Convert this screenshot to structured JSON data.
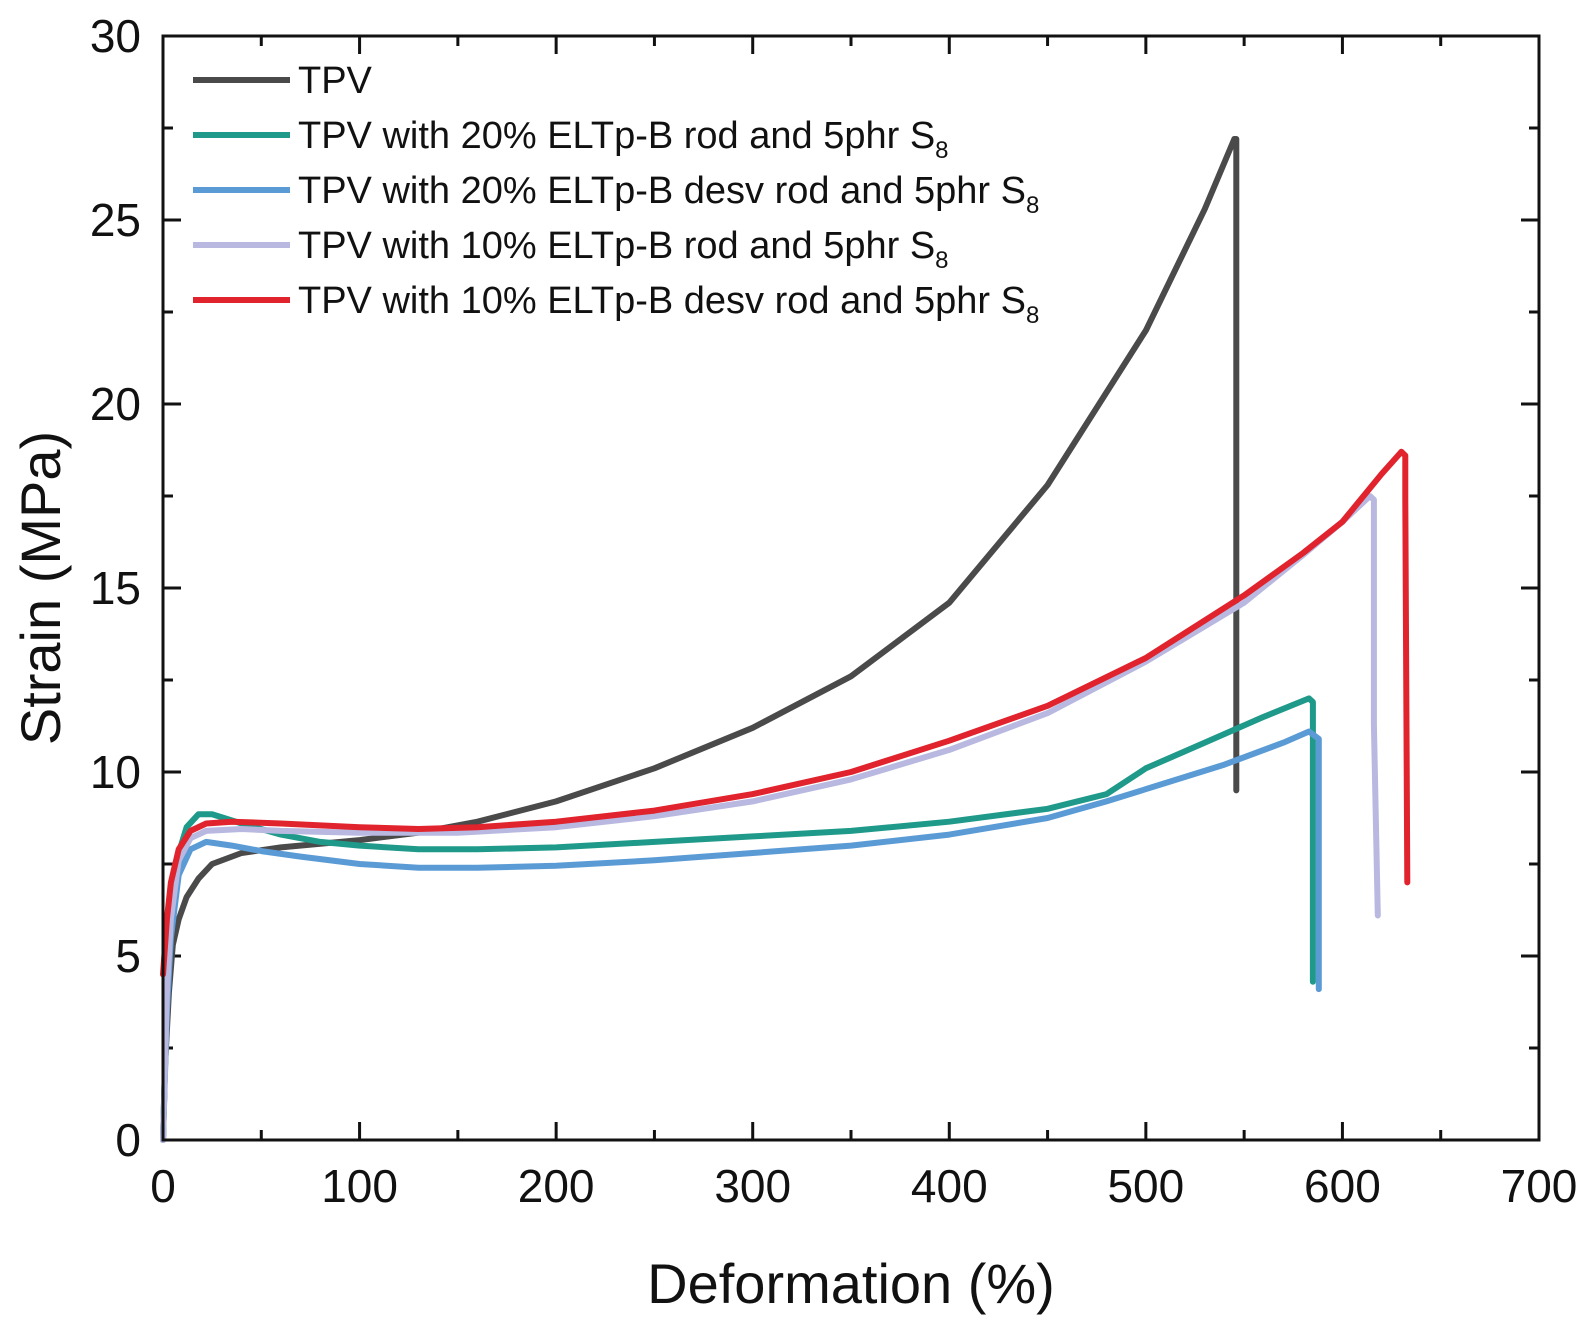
{
  "chart_data": {
    "type": "line",
    "title": "",
    "xlabel": "Deformation (%)",
    "ylabel": "Strain (MPa)",
    "xlim": [
      0,
      700
    ],
    "ylim": [
      0,
      30
    ],
    "xticks": [
      0,
      100,
      200,
      300,
      400,
      500,
      600,
      700
    ],
    "yticks": [
      0,
      5,
      10,
      15,
      20,
      25,
      30
    ],
    "xtick_labels": [
      "0",
      "100",
      "200",
      "300",
      "400",
      "500",
      "600",
      "700"
    ],
    "ytick_labels": [
      "0",
      "5",
      "10",
      "15",
      "20",
      "25",
      "30"
    ],
    "legend_position": "top-left",
    "series": [
      {
        "name": "TPV",
        "legend_label": "TPV",
        "legend_subscript": "",
        "color": "#4a4a4a",
        "points": [
          [
            0,
            0
          ],
          [
            1,
            2
          ],
          [
            3,
            4
          ],
          [
            5,
            5.3
          ],
          [
            8,
            6
          ],
          [
            12,
            6.6
          ],
          [
            18,
            7.1
          ],
          [
            25,
            7.5
          ],
          [
            40,
            7.8
          ],
          [
            60,
            7.95
          ],
          [
            80,
            8.05
          ],
          [
            100,
            8.15
          ],
          [
            130,
            8.35
          ],
          [
            160,
            8.65
          ],
          [
            200,
            9.2
          ],
          [
            250,
            10.1
          ],
          [
            300,
            11.2
          ],
          [
            350,
            12.6
          ],
          [
            400,
            14.6
          ],
          [
            450,
            17.8
          ],
          [
            500,
            22
          ],
          [
            530,
            25.3
          ],
          [
            545,
            27.2
          ],
          [
            546,
            27.2
          ],
          [
            546,
            9.5
          ]
        ]
      },
      {
        "name": "TPV with 20% ELTp-B rod and 5phr S8",
        "legend_label": "TPV with 20% ELTp-B rod and 5phr S",
        "legend_subscript": "8",
        "color": "#1f9a8a",
        "points": [
          [
            0,
            0
          ],
          [
            2,
            4
          ],
          [
            4,
            6
          ],
          [
            8,
            7.8
          ],
          [
            12,
            8.5
          ],
          [
            18,
            8.85
          ],
          [
            25,
            8.85
          ],
          [
            40,
            8.6
          ],
          [
            60,
            8.3
          ],
          [
            80,
            8.1
          ],
          [
            100,
            8
          ],
          [
            130,
            7.9
          ],
          [
            160,
            7.9
          ],
          [
            200,
            7.95
          ],
          [
            250,
            8.1
          ],
          [
            300,
            8.25
          ],
          [
            350,
            8.4
          ],
          [
            400,
            8.65
          ],
          [
            450,
            9
          ],
          [
            480,
            9.4
          ],
          [
            500,
            10.1
          ],
          [
            530,
            10.8
          ],
          [
            560,
            11.5
          ],
          [
            583,
            12
          ],
          [
            585,
            11.9
          ],
          [
            585,
            4.3
          ]
        ]
      },
      {
        "name": "TPV with 20% ELTp-B desv rod and 5phr S8",
        "legend_label": "TPV with 20% ELTp-B desv rod and 5phr S",
        "legend_subscript": "8",
        "color": "#5b9bd5",
        "points": [
          [
            0,
            0
          ],
          [
            2,
            3.5
          ],
          [
            4,
            5.5
          ],
          [
            8,
            7.2
          ],
          [
            14,
            7.9
          ],
          [
            22,
            8.1
          ],
          [
            35,
            8
          ],
          [
            50,
            7.85
          ],
          [
            70,
            7.7
          ],
          [
            100,
            7.5
          ],
          [
            130,
            7.4
          ],
          [
            160,
            7.4
          ],
          [
            200,
            7.45
          ],
          [
            250,
            7.6
          ],
          [
            300,
            7.8
          ],
          [
            350,
            8
          ],
          [
            400,
            8.3
          ],
          [
            450,
            8.75
          ],
          [
            480,
            9.2
          ],
          [
            510,
            9.7
          ],
          [
            540,
            10.2
          ],
          [
            570,
            10.8
          ],
          [
            583,
            11.1
          ],
          [
            588,
            10.9
          ],
          [
            588,
            4.1
          ]
        ]
      },
      {
        "name": "TPV with 10% ELTp-B rod and 5phr S8",
        "legend_label": "TPV with 10% ELTp-B rod and 5phr S",
        "legend_subscript": "8",
        "color": "#b8b8e0",
        "points": [
          [
            0,
            0
          ],
          [
            2,
            4
          ],
          [
            4,
            6
          ],
          [
            8,
            7.6
          ],
          [
            14,
            8.2
          ],
          [
            22,
            8.4
          ],
          [
            40,
            8.45
          ],
          [
            60,
            8.4
          ],
          [
            100,
            8.35
          ],
          [
            150,
            8.35
          ],
          [
            200,
            8.5
          ],
          [
            250,
            8.8
          ],
          [
            300,
            9.2
          ],
          [
            350,
            9.8
          ],
          [
            400,
            10.6
          ],
          [
            450,
            11.6
          ],
          [
            500,
            13
          ],
          [
            550,
            14.6
          ],
          [
            580,
            15.9
          ],
          [
            600,
            16.8
          ],
          [
            614,
            17.5
          ],
          [
            616,
            17.4
          ],
          [
            616,
            11.3
          ],
          [
            618,
            6.1
          ]
        ]
      },
      {
        "name": "TPV with 10% ELTp-B desv rod and 5phr S8",
        "legend_label": "TPV with 10% ELTp-B desv rod and 5phr S",
        "legend_subscript": "8",
        "color": "#e0232c",
        "points": [
          [
            0,
            4.5
          ],
          [
            2,
            6
          ],
          [
            4,
            7
          ],
          [
            8,
            7.9
          ],
          [
            14,
            8.4
          ],
          [
            22,
            8.6
          ],
          [
            35,
            8.65
          ],
          [
            60,
            8.6
          ],
          [
            100,
            8.5
          ],
          [
            130,
            8.45
          ],
          [
            160,
            8.5
          ],
          [
            200,
            8.65
          ],
          [
            250,
            8.95
          ],
          [
            300,
            9.4
          ],
          [
            350,
            10
          ],
          [
            400,
            10.85
          ],
          [
            450,
            11.8
          ],
          [
            500,
            13.1
          ],
          [
            550,
            14.8
          ],
          [
            580,
            15.95
          ],
          [
            600,
            16.8
          ],
          [
            620,
            18.1
          ],
          [
            630,
            18.7
          ],
          [
            632,
            18.6
          ],
          [
            632,
            17.4
          ],
          [
            633,
            7
          ]
        ]
      }
    ]
  }
}
